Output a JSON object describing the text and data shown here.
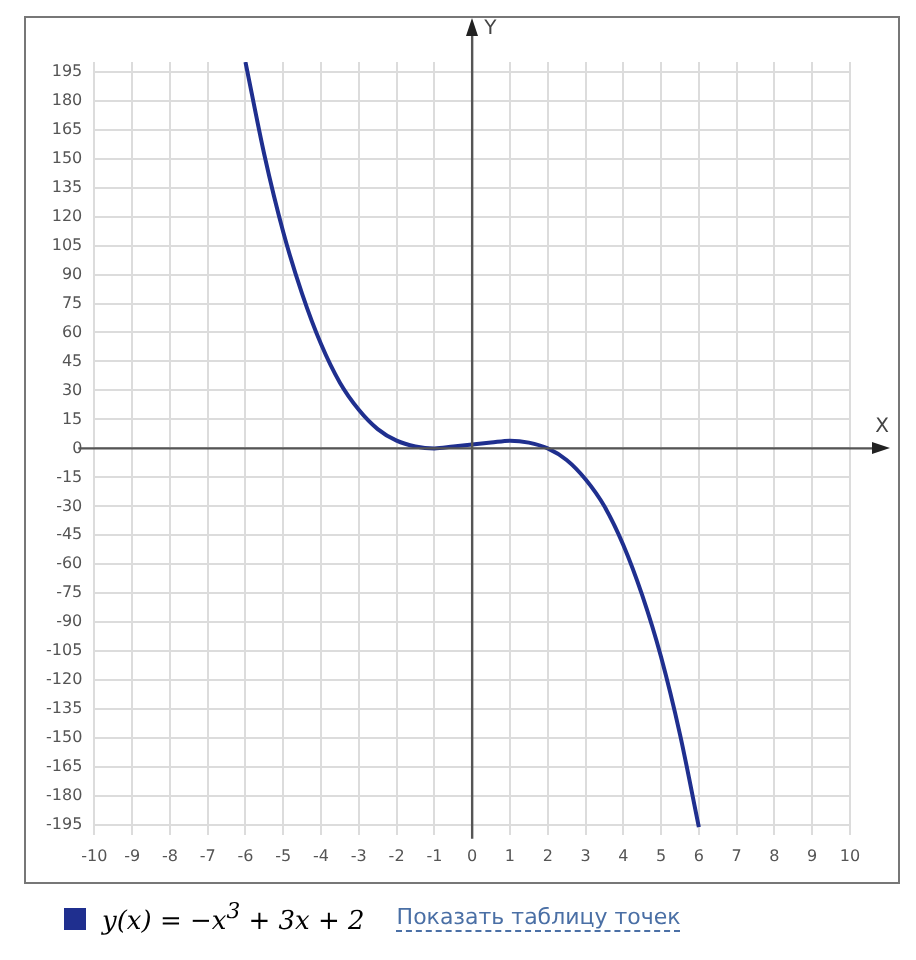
{
  "chart_data": {
    "type": "line",
    "xlabel": "X",
    "ylabel": "Y",
    "x": [
      -6,
      -5.5,
      -5,
      -4.5,
      -4,
      -3.5,
      -3,
      -2.5,
      -2,
      -1.5,
      -1,
      -0.5,
      0,
      0.5,
      1,
      1.5,
      2,
      2.5,
      3,
      3.5,
      4,
      4.5,
      5,
      5.5,
      6
    ],
    "series": [
      {
        "name": "y(x) = −x$^{3}$ + 3x + 2",
        "color": "#1f2f8f",
        "values": [
          200,
          152,
          112,
          80,
          54,
          34,
          20,
          10,
          4,
          1,
          0,
          1,
          2,
          3,
          4,
          3,
          0,
          -6,
          -16,
          -30,
          -50,
          -76,
          -108,
          -148,
          -196
        ]
      }
    ],
    "xlim": [
      -10,
      10
    ],
    "ylim": [
      -200,
      200
    ],
    "xticks": [
      -10,
      -9,
      -8,
      -7,
      -6,
      -5,
      -4,
      -3,
      -2,
      -1,
      0,
      1,
      2,
      3,
      4,
      5,
      6,
      7,
      8,
      9,
      10
    ],
    "yticks": [
      -195,
      -180,
      -165,
      -150,
      -135,
      -120,
      -105,
      -90,
      -75,
      -60,
      -45,
      -30,
      -15,
      0,
      15,
      30,
      45,
      60,
      75,
      90,
      105,
      120,
      135,
      150,
      165,
      180,
      195
    ],
    "grid": true,
    "legend": "bottom",
    "marker": "none",
    "line_style": "solid",
    "annotations": [
      "Показать таблицу точек"
    ]
  }
}
